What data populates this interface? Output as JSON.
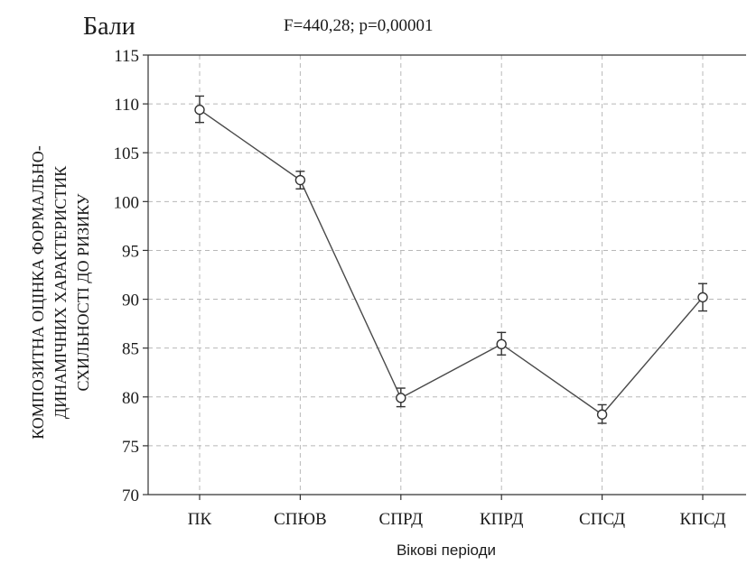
{
  "chart_data": {
    "type": "line",
    "units_label": "Бали",
    "stats_annotation": "F=440,28; p=0,00001",
    "ylabel": "КОМПОЗИТНА ОЦІНКА ФОРМАЛЬНО-ДИНАМІЧНИХ ХАРАКТЕРИСТИК СХИЛЬНОСТІ ДО РИЗИКУ",
    "ylabel_lines": [
      "КОМПОЗИТНА ОЦІНКА ФОРМАЛЬНО-",
      "ДИНАМІЧНИХ ХАРАКТЕРИСТИК",
      "СХИЛЬНОСТІ ДО РИЗИКУ"
    ],
    "xlabel": "Вікові періоди",
    "categories": [
      "ПК",
      "СПЮВ",
      "СПРД",
      "КПРД",
      "СПСД",
      "КПСД"
    ],
    "ylim": [
      70,
      115
    ],
    "yticks": [
      70,
      75,
      80,
      85,
      90,
      95,
      100,
      105,
      110,
      115
    ],
    "grid": true,
    "series": [
      {
        "values": [
          109.4,
          102.2,
          79.9,
          85.4,
          78.2,
          90.2
        ],
        "error_low": [
          108.1,
          101.3,
          79.0,
          84.3,
          77.3,
          88.8
        ],
        "error_high": [
          110.8,
          103.1,
          80.9,
          86.6,
          79.2,
          91.6
        ]
      }
    ]
  }
}
